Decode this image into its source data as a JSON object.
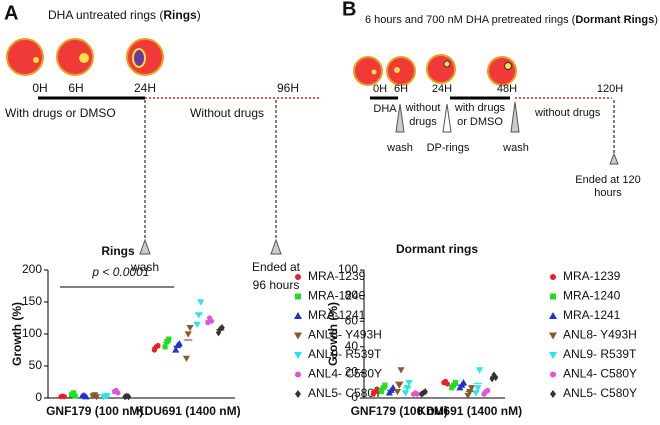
{
  "panel_a": {
    "label": "A",
    "title": [
      "DHA untreated rings (",
      "Rings",
      ")"
    ],
    "times": [
      "0H",
      "6H",
      "24H",
      "96H"
    ],
    "phases": [
      "With drugs or DMSO",
      "Without drugs"
    ],
    "wash": "wash",
    "ended": [
      "Ended at",
      "96 hours"
    ]
  },
  "panel_b": {
    "label": "B",
    "title": [
      "6 hours and 700 nM DHA pretreated rings (",
      "Dormant Rings",
      ")"
    ],
    "times": [
      "0H",
      "6H",
      "24H",
      "48H",
      "120H"
    ],
    "dha": "DHA",
    "without_a": [
      "without",
      "drugs"
    ],
    "with": [
      "with drugs",
      "or DMSO"
    ],
    "without_b": "without drugs",
    "wash_a": "wash",
    "dp": "DP-rings",
    "wash_b": "wash",
    "ended": [
      "Ended at 120",
      "hours"
    ]
  },
  "chart_data": [
    {
      "type": "dot",
      "title": "Rings",
      "ylabel": "Growth (%)",
      "annotation": "p < 0.0001",
      "categories": [
        "GNF179 (100 nM)",
        "KDU691 (1400 nM)"
      ],
      "ylim": [
        0,
        200
      ],
      "yticks": [
        0,
        50,
        100,
        150,
        200
      ],
      "series": [
        {
          "name": "MRA-1239",
          "color": "#e8202a",
          "marker": "circle",
          "values": [
            [
              2,
              3,
              2
            ],
            [
              75,
              80,
              82
            ]
          ]
        },
        {
          "name": "MRA-1240",
          "color": "#22dd22",
          "marker": "square",
          "values": [
            [
              5,
              8,
              3
            ],
            [
              80,
              88,
              92
            ]
          ]
        },
        {
          "name": "MRA-1241",
          "color": "#2233cc",
          "marker": "triangle-up",
          "values": [
            [
              3,
              4,
              2
            ],
            [
              75,
              82,
              85
            ]
          ]
        },
        {
          "name": "ANL8- Y493H",
          "color": "#8b5a2b",
          "marker": "triangle-down",
          "values": [
            [
              3,
              5,
              2
            ],
            [
              62,
              100,
              110
            ]
          ]
        },
        {
          "name": "ANL9- R539T",
          "color": "#22e8e8",
          "marker": "triangle-down",
          "values": [
            [
              2,
              3,
              4
            ],
            [
              115,
              130,
              150
            ]
          ]
        },
        {
          "name": "ANL4- C580Y",
          "color": "#e055d8",
          "marker": "circle",
          "values": [
            [
              10,
              12,
              8
            ],
            [
              118,
              125,
              120
            ]
          ]
        },
        {
          "name": "ANL5- C580Y",
          "color": "#333333",
          "marker": "diamond",
          "values": [
            [
              2,
              3,
              2
            ],
            [
              102,
              108,
              110
            ]
          ]
        }
      ]
    },
    {
      "type": "dot",
      "title": "Dormant rings",
      "ylabel": "Growth (%)",
      "categories": [
        "GNF179 (100 nM)",
        "KDU691 (1400 nM)"
      ],
      "ylim": [
        0,
        100
      ],
      "yticks": [
        0,
        20,
        40,
        60,
        80,
        100
      ],
      "series": [
        {
          "name": "MRA-1239",
          "color": "#e8202a",
          "marker": "circle",
          "values": [
            [
              3,
              5,
              7
            ],
            [
              12,
              13,
              11
            ]
          ]
        },
        {
          "name": "MRA-1240",
          "color": "#22dd22",
          "marker": "square",
          "values": [
            [
              5,
              8,
              10
            ],
            [
              8,
              10,
              12
            ]
          ]
        },
        {
          "name": "MRA-1241",
          "color": "#2233cc",
          "marker": "triangle-up",
          "values": [
            [
              4,
              6,
              8
            ],
            [
              8,
              10,
              12
            ]
          ]
        },
        {
          "name": "ANL8- Y493H",
          "color": "#8b5a2b",
          "marker": "triangle-down",
          "values": [
            [
              5,
              10,
              22
            ],
            [
              2,
              5,
              8
            ]
          ]
        },
        {
          "name": "ANL9- R539T",
          "color": "#22e8e8",
          "marker": "triangle-down",
          "values": [
            [
              4,
              8,
              12
            ],
            [
              4,
              8,
              22
            ]
          ]
        },
        {
          "name": "ANL4- C580Y",
          "color": "#e055d8",
          "marker": "circle",
          "values": [
            [
              3,
              4,
              3
            ],
            [
              3,
              5,
              6
            ]
          ]
        },
        {
          "name": "ANL5- C580Y",
          "color": "#333333",
          "marker": "diamond",
          "values": [
            [
              3,
              4,
              5
            ],
            [
              15,
              18,
              16
            ]
          ]
        }
      ]
    }
  ]
}
